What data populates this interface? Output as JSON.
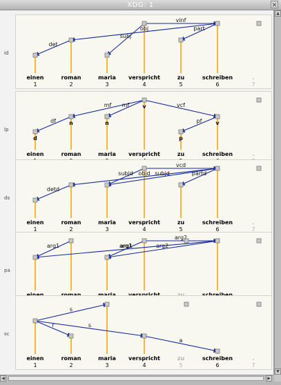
{
  "window": {
    "title": "XDG: 1",
    "close_glyph": "×"
  },
  "words": [
    "einen",
    "roman",
    "maria",
    "verspricht",
    "zu",
    "schreiben",
    "."
  ],
  "indices": [
    "1",
    "2",
    "3",
    "4",
    "5",
    "6",
    "7"
  ],
  "colors": {
    "edge": "#1428a0",
    "stem": "#f0a000",
    "node_fill": "#c8c8c8",
    "gray_text": "#b0b0b0"
  },
  "icons": [
    "scroll-up-arrow-icon",
    "scroll-down-arrow-icon",
    "scroll-left-arrow-icon",
    "scroll-right-arrow-icon",
    "close-icon"
  ],
  "dimensions": [
    {
      "id": "id",
      "label": "id",
      "node_level": [
        2,
        1,
        2,
        0,
        1,
        0,
        -1
      ],
      "muted": [
        false,
        false,
        false,
        false,
        false,
        false,
        true
      ],
      "node_labels": [
        "",
        "",
        "",
        "",
        "",
        "",
        ""
      ],
      "edges": [
        {
          "from": 4,
          "to": 3,
          "label": "subj"
        },
        {
          "from": 4,
          "to": 6,
          "label": "vinf"
        },
        {
          "from": 6,
          "to": 2,
          "label": "obj"
        },
        {
          "from": 6,
          "to": 5,
          "label": "part"
        },
        {
          "from": 2,
          "to": 1,
          "label": "det"
        }
      ]
    },
    {
      "id": "lp",
      "label": "lp",
      "node_level": [
        2,
        1,
        1,
        0,
        2,
        1,
        -1
      ],
      "muted": [
        false,
        false,
        false,
        false,
        false,
        false,
        true
      ],
      "node_labels": [
        "d",
        "n",
        "n",
        "v",
        "p",
        "v",
        ""
      ],
      "edges": [
        {
          "from": 4,
          "to": 2,
          "label": "mf"
        },
        {
          "from": 4,
          "to": 3,
          "label": "mf"
        },
        {
          "from": 4,
          "to": 6,
          "label": "vcf"
        },
        {
          "from": 6,
          "to": 5,
          "label": "pf"
        },
        {
          "from": 2,
          "to": 1,
          "label": "df"
        }
      ]
    },
    {
      "id": "ds",
      "label": "ds",
      "node_level": [
        2,
        1,
        1,
        0,
        1,
        0,
        -1
      ],
      "muted": [
        false,
        false,
        false,
        false,
        false,
        false,
        true
      ],
      "node_labels": [
        "",
        "",
        "",
        "",
        "",
        "",
        ""
      ],
      "edges": [
        {
          "from": 4,
          "to": 3,
          "label": "subjd"
        },
        {
          "from": 4,
          "to": 6,
          "label": "vcd"
        },
        {
          "from": 6,
          "to": 2,
          "label": "objd"
        },
        {
          "from": 6,
          "to": 3,
          "label": "subjd"
        },
        {
          "from": 6,
          "to": 5,
          "label": "partd"
        },
        {
          "from": 2,
          "to": 1,
          "label": "detd"
        }
      ]
    },
    {
      "id": "pa",
      "label": "pa",
      "node_level": [
        1,
        0,
        1,
        0,
        -1,
        0,
        -1
      ],
      "muted": [
        false,
        false,
        false,
        false,
        true,
        false,
        true
      ],
      "node_labels": [
        "",
        "",
        "",
        "",
        "",
        "",
        ""
      ],
      "edges": [
        {
          "from": 2,
          "to": 1,
          "label": "arg1"
        },
        {
          "from": 4,
          "to": 3,
          "label": "arg1"
        },
        {
          "from": 4,
          "to": 6,
          "label": "arg2"
        },
        {
          "from": 6,
          "to": 3,
          "label": "arg2"
        },
        {
          "from": 6,
          "to": 1,
          "label": "arg1"
        }
      ]
    },
    {
      "id": "sc",
      "label": "sc",
      "node_level": [
        1,
        2,
        0,
        2,
        -1,
        3,
        -1
      ],
      "muted": [
        false,
        false,
        false,
        false,
        true,
        false,
        true
      ],
      "node_labels": [
        "",
        "",
        "",
        "",
        "",
        "",
        ""
      ],
      "edges": [
        {
          "from": 1,
          "to": 3,
          "label": "s"
        },
        {
          "from": 1,
          "to": 2,
          "label": "r"
        },
        {
          "from": 1,
          "to": 4,
          "label": "s"
        },
        {
          "from": 4,
          "to": 6,
          "label": "a"
        }
      ]
    }
  ]
}
